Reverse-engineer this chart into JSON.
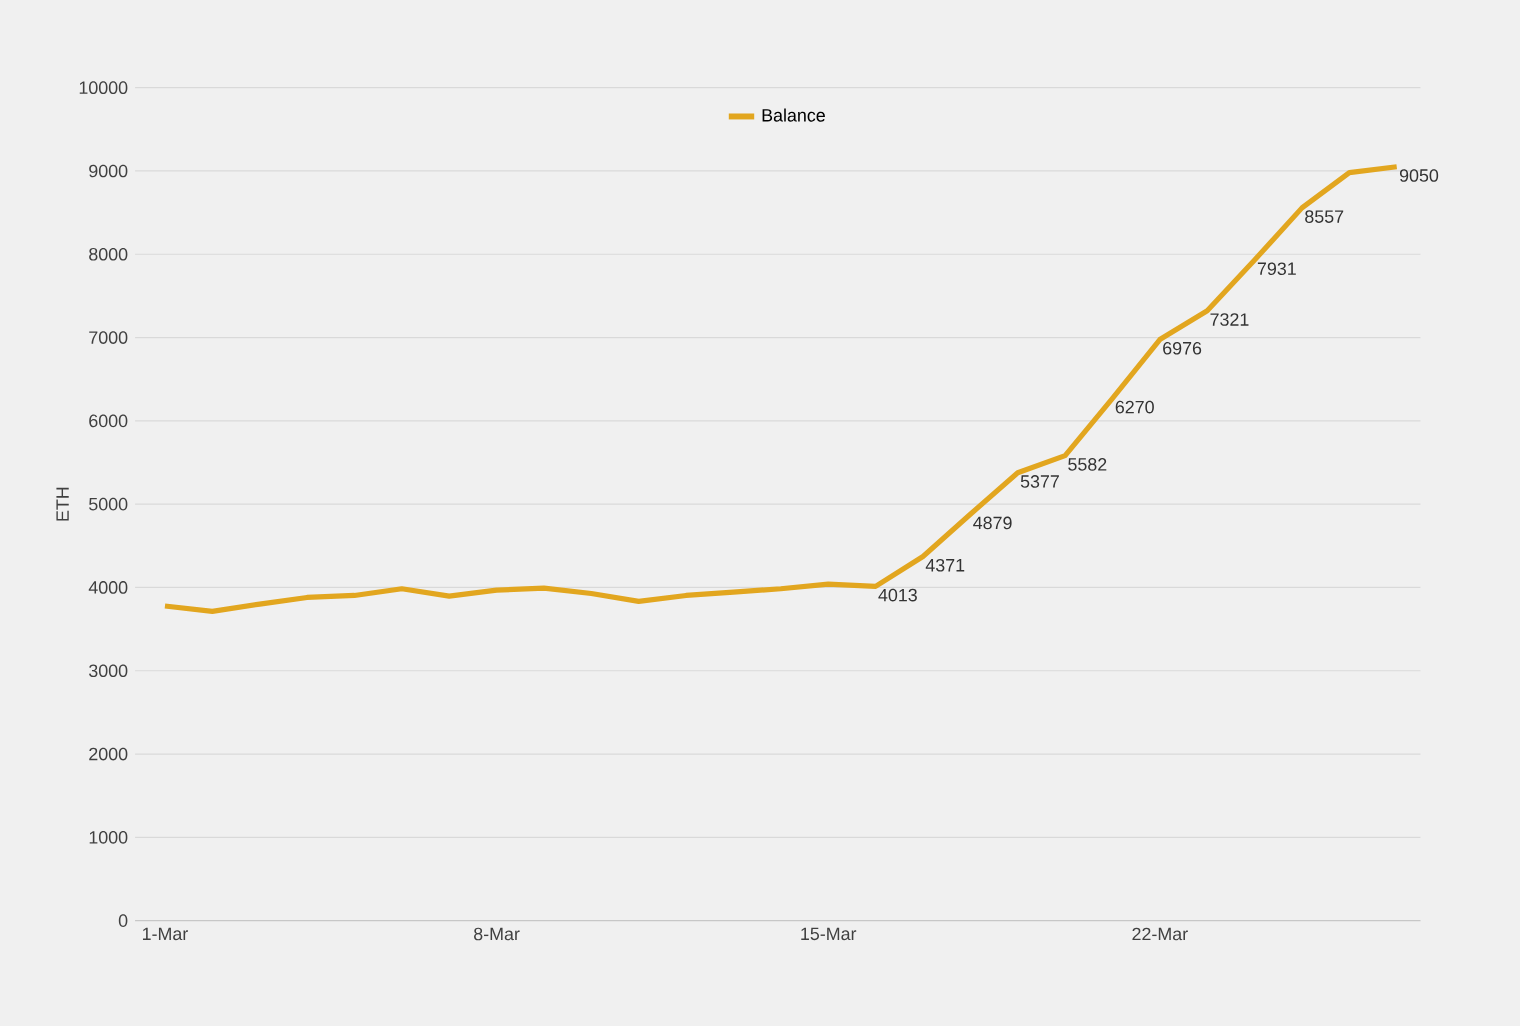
{
  "chart_data": {
    "type": "line",
    "ylabel": "ETH",
    "categories": [
      "1-Mar",
      null,
      null,
      null,
      null,
      null,
      null,
      "8-Mar",
      null,
      null,
      null,
      null,
      null,
      null,
      "15-Mar",
      null,
      null,
      null,
      null,
      null,
      null,
      "22-Mar",
      null,
      null,
      null,
      null,
      null
    ],
    "series": [
      {
        "name": "Balance",
        "color": "#e2a61f",
        "values": [
          3777,
          3713,
          3800,
          3880,
          3904,
          3984,
          3896,
          3968,
          3992,
          3928,
          3833,
          3904,
          3944,
          3984,
          4040,
          4013,
          4371,
          4879,
          5377,
          5582,
          6270,
          6976,
          7321,
          7931,
          8557,
          8980,
          9050
        ],
        "value_labels": [
          null,
          null,
          null,
          null,
          null,
          null,
          null,
          null,
          null,
          null,
          null,
          null,
          null,
          null,
          null,
          "4013",
          "4371",
          "4879",
          "5377",
          "5582",
          "6270",
          "6976",
          "7321",
          "7931",
          "8557",
          null,
          "9050"
        ]
      }
    ],
    "ylim": [
      0,
      10000
    ],
    "yticks": [
      0,
      1000,
      2000,
      3000,
      4000,
      5000,
      6000,
      7000,
      8000,
      9000,
      10000
    ],
    "grid": "y",
    "legend": "top",
    "line_style": "solid"
  }
}
